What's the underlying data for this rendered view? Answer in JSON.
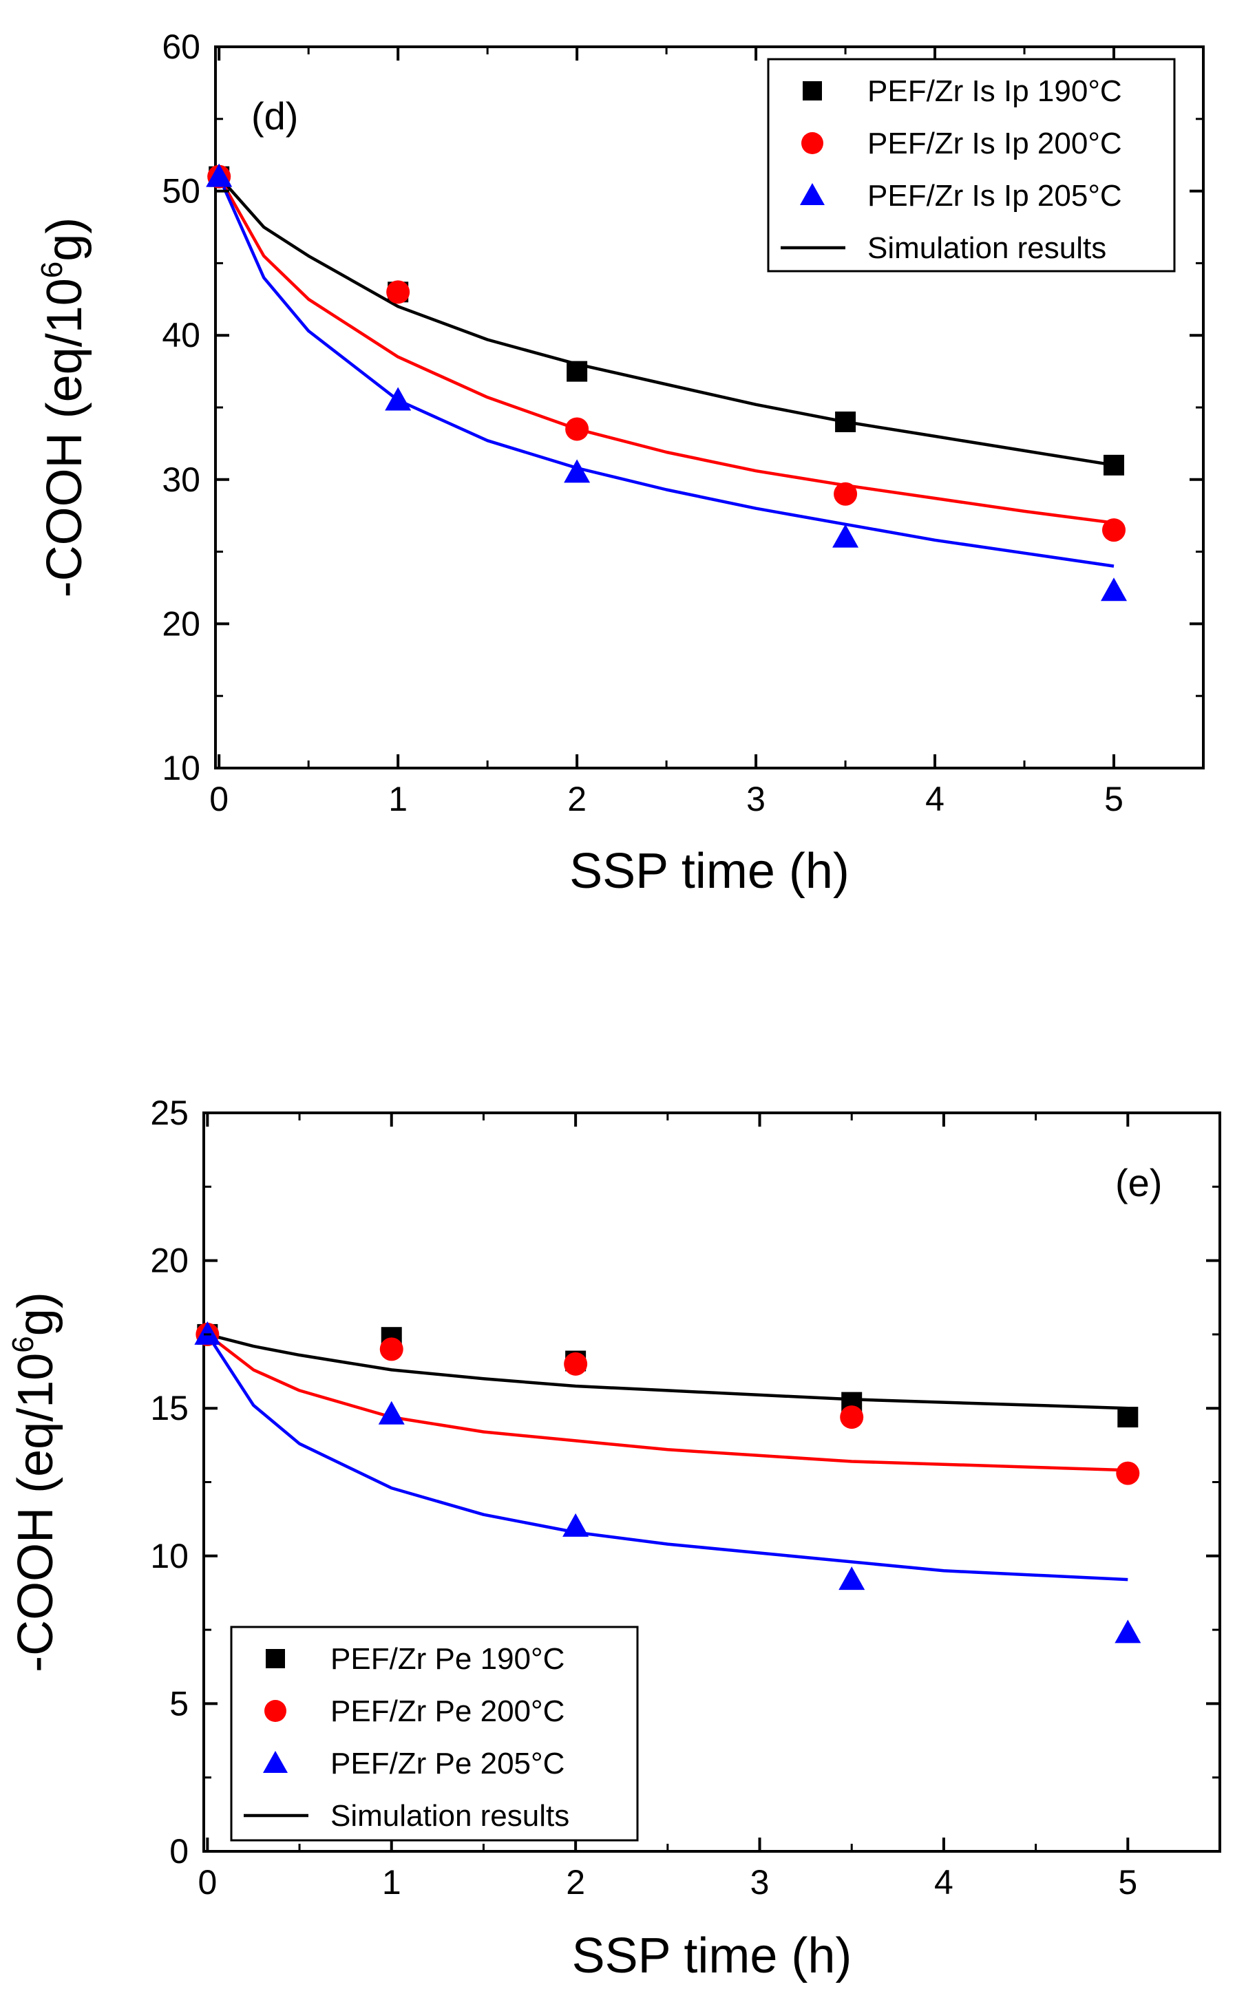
{
  "chart_data": [
    {
      "type": "scatter",
      "panel_label": "(d)",
      "xlabel": "SSP time (h)",
      "ylabel": "-COOH (eq/10^6g)",
      "ylabel_parts": {
        "main": "-COOH (eq/10",
        "sup": "6",
        "end": "g)"
      },
      "xlim": [
        -0.02,
        5.5
      ],
      "ylim": [
        10,
        60
      ],
      "xticks": [
        0,
        1,
        2,
        3,
        4,
        5
      ],
      "xtick_labels": [
        "0",
        "1",
        "2",
        "3",
        "4",
        "5"
      ],
      "yticks": [
        10,
        20,
        30,
        40,
        50,
        60
      ],
      "ytick_labels": [
        "10",
        "20",
        "30",
        "40",
        "50",
        "60"
      ],
      "legend_position": "top-right",
      "series": [
        {
          "name": "PEF/Zr Is Ip 190°C",
          "marker": "square",
          "color": "#000000",
          "x": [
            0,
            1,
            2,
            3.5,
            5
          ],
          "y": [
            51,
            43,
            37.5,
            34,
            31
          ]
        },
        {
          "name": "PEF/Zr Is Ip 200°C",
          "marker": "circle",
          "color": "#ff0000",
          "x": [
            0,
            1,
            2,
            3.5,
            5
          ],
          "y": [
            51,
            43,
            33.5,
            29,
            26.5
          ]
        },
        {
          "name": "PEF/Zr Is Ip 205°C",
          "marker": "triangle",
          "color": "#0000ff",
          "x": [
            0,
            1,
            2,
            3.5,
            5
          ],
          "y": [
            51,
            35.5,
            30.5,
            26,
            22.3
          ]
        }
      ],
      "simulation": {
        "name": "Simulation results",
        "curves": [
          {
            "color": "#000000",
            "x": [
              0,
              0.25,
              0.5,
              1,
              1.5,
              2,
              2.5,
              3,
              3.5,
              4,
              4.5,
              5
            ],
            "y": [
              51,
              47.5,
              45.5,
              42,
              39.7,
              38,
              36.6,
              35.2,
              34,
              33,
              32,
              31
            ]
          },
          {
            "color": "#ff0000",
            "x": [
              0,
              0.25,
              0.5,
              1,
              1.5,
              2,
              2.5,
              3,
              3.5,
              4,
              4.5,
              5
            ],
            "y": [
              51,
              45.5,
              42.5,
              38.5,
              35.7,
              33.5,
              31.9,
              30.6,
              29.6,
              28.7,
              27.8,
              27
            ]
          },
          {
            "color": "#0000ff",
            "x": [
              0,
              0.25,
              0.5,
              1,
              1.5,
              2,
              2.5,
              3,
              3.5,
              4,
              4.5,
              5
            ],
            "y": [
              51,
              44,
              40.3,
              35.5,
              32.7,
              30.8,
              29.3,
              28,
              26.9,
              25.8,
              24.9,
              24
            ]
          }
        ]
      }
    },
    {
      "type": "scatter",
      "panel_label": "(e)",
      "xlabel": "SSP time (h)",
      "ylabel": "-COOH (eq/10^6g)",
      "ylabel_parts": {
        "main": "-COOH (eq/10",
        "sup": "6",
        "end": "g)"
      },
      "xlim": [
        -0.02,
        5.5
      ],
      "ylim": [
        0,
        25
      ],
      "xticks": [
        0,
        1,
        2,
        3,
        4,
        5
      ],
      "xtick_labels": [
        "0",
        "1",
        "2",
        "3",
        "4",
        "5"
      ],
      "yticks": [
        0,
        5,
        10,
        15,
        20,
        25
      ],
      "ytick_labels": [
        "0",
        "5",
        "10",
        "15",
        "20",
        "25"
      ],
      "legend_position": "bottom-left",
      "series": [
        {
          "name": "PEF/Zr Pe 190°C",
          "marker": "square",
          "color": "#000000",
          "x": [
            0,
            1,
            2,
            3.5,
            5
          ],
          "y": [
            17.5,
            17.4,
            16.6,
            15.2,
            14.7
          ]
        },
        {
          "name": "PEF/Zr Pe 200°C",
          "marker": "circle",
          "color": "#ff0000",
          "x": [
            0,
            1,
            2,
            3.5,
            5
          ],
          "y": [
            17.5,
            17,
            16.5,
            14.7,
            12.8
          ]
        },
        {
          "name": "PEF/Zr Pe 205°C",
          "marker": "triangle",
          "color": "#0000ff",
          "x": [
            0,
            1,
            2,
            3.5,
            5
          ],
          "y": [
            17.5,
            14.8,
            11,
            9.2,
            7.4
          ]
        }
      ],
      "simulation": {
        "name": "Simulation results",
        "curves": [
          {
            "color": "#000000",
            "x": [
              0,
              0.25,
              0.5,
              1,
              1.5,
              2,
              2.5,
              3,
              3.5,
              4,
              4.5,
              5
            ],
            "y": [
              17.5,
              17.1,
              16.8,
              16.3,
              16,
              15.75,
              15.6,
              15.45,
              15.3,
              15.2,
              15.1,
              15
            ]
          },
          {
            "color": "#ff0000",
            "x": [
              0,
              0.25,
              0.5,
              1,
              1.5,
              2,
              2.5,
              3,
              3.5,
              4,
              4.5,
              5
            ],
            "y": [
              17.5,
              16.3,
              15.6,
              14.7,
              14.2,
              13.9,
              13.6,
              13.4,
              13.2,
              13.1,
              13,
              12.9
            ]
          },
          {
            "color": "#0000ff",
            "x": [
              0,
              0.25,
              0.5,
              1,
              1.5,
              2,
              2.5,
              3,
              3.5,
              4,
              4.5,
              5
            ],
            "y": [
              17.5,
              15.1,
              13.8,
              12.3,
              11.4,
              10.8,
              10.4,
              10.1,
              9.8,
              9.5,
              9.35,
              9.2
            ]
          }
        ]
      }
    }
  ]
}
